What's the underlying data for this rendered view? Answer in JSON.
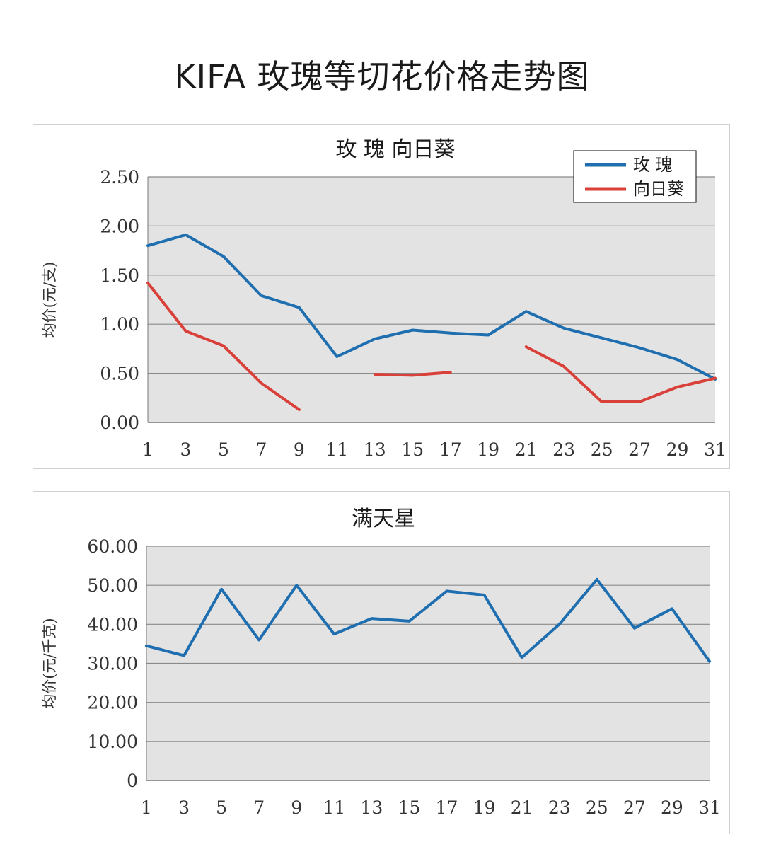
{
  "page_title": "KIFA 玫瑰等切花价格走势图",
  "colors": {
    "rose": "#1f6fb0",
    "sunflower": "#d9403a",
    "plot_bg": "#e3e3e3",
    "grid": "#8a8a8a"
  },
  "chart_data": [
    {
      "type": "line",
      "title": "玫 瑰   向日葵",
      "xlabel": "",
      "ylabel": "均价(元/支)",
      "x": [
        1,
        3,
        5,
        7,
        9,
        11,
        13,
        15,
        17,
        19,
        21,
        23,
        25,
        27,
        29,
        31
      ],
      "x_tick_labels": [
        "1",
        "3",
        "5",
        "7",
        "9",
        "11",
        "13",
        "15",
        "17",
        "19",
        "21",
        "23",
        "25",
        "27",
        "29",
        "31"
      ],
      "y_tick_labels": [
        "2.50",
        "2.00",
        "1.50",
        "1.00",
        "0.50",
        "0.00"
      ],
      "ylim": [
        0,
        2.5
      ],
      "grid": true,
      "legend": "top-right",
      "series": [
        {
          "name": "玫 瑰",
          "color": "#1f6fb0",
          "values": [
            1.8,
            1.91,
            1.69,
            1.29,
            1.17,
            0.67,
            0.85,
            0.94,
            0.91,
            0.89,
            1.13,
            0.96,
            0.86,
            0.76,
            0.64,
            0.44
          ]
        },
        {
          "name": "向日葵",
          "color": "#d9403a",
          "values": [
            1.42,
            0.93,
            0.78,
            0.4,
            0.13,
            null,
            0.49,
            0.48,
            0.51,
            null,
            0.77,
            0.57,
            0.21,
            0.21,
            0.36,
            0.45
          ]
        }
      ]
    },
    {
      "type": "line",
      "title": "满天星",
      "xlabel": "",
      "ylabel": "均价(元/千克)",
      "x": [
        1,
        3,
        5,
        7,
        9,
        11,
        13,
        15,
        17,
        19,
        21,
        23,
        25,
        27,
        29,
        31
      ],
      "x_tick_labels": [
        "1",
        "3",
        "5",
        "7",
        "9",
        "11",
        "13",
        "15",
        "17",
        "19",
        "21",
        "23",
        "25",
        "27",
        "29",
        "31"
      ],
      "y_tick_labels": [
        "60.00",
        "50.00",
        "40.00",
        "30.00",
        "20.00",
        "10.00",
        "0"
      ],
      "ylim": [
        0,
        60
      ],
      "grid": true,
      "series": [
        {
          "color": "#1f6fb0",
          "values": [
            34.5,
            32.0,
            49.0,
            36.0,
            50.0,
            37.5,
            41.5,
            40.8,
            48.5,
            47.5,
            31.5,
            40.0,
            51.5,
            39.0,
            44.0,
            30.5
          ]
        }
      ]
    }
  ]
}
